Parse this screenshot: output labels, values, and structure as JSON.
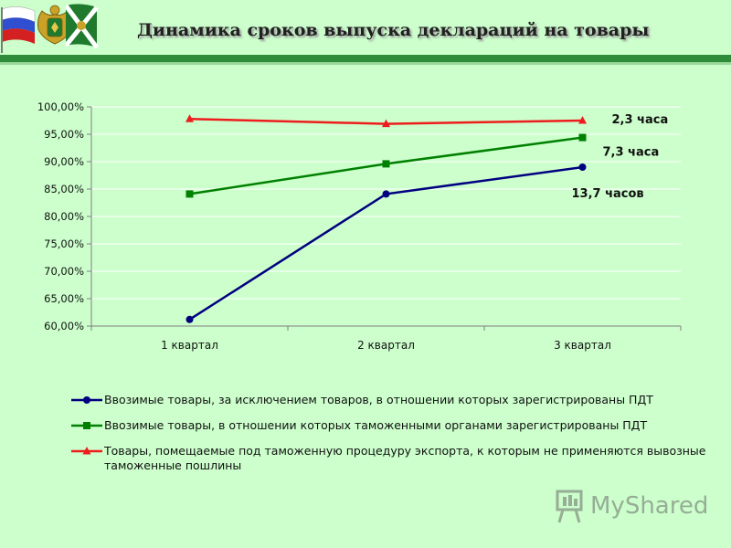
{
  "header": {
    "title": "Динамика сроков выпуска деклараций на товары"
  },
  "colors": {
    "background": "#ccffcc",
    "header_rule": "#2e8b3a",
    "series_blue": "#000080",
    "series_green": "#008000",
    "series_red": "#ee1c1c"
  },
  "chart_data": {
    "type": "line",
    "title": "",
    "xlabel": "",
    "ylabel": "",
    "ylim": [
      60,
      100
    ],
    "y_tick_step": 5,
    "yticks": [
      "60,00%",
      "65,00%",
      "70,00%",
      "75,00%",
      "80,00%",
      "85,00%",
      "90,00%",
      "95,00%",
      "100,00%"
    ],
    "categories": [
      "1 квартал",
      "2 квартал",
      "3 квартал"
    ],
    "grid": true,
    "legend_position": "bottom",
    "series": [
      {
        "name": "Ввозимые товары, за исключением товаров, в отношении которых зарегистрированы ПДТ",
        "values": [
          61.2,
          84.1,
          89.0
        ],
        "color": "#000080",
        "marker": "circle"
      },
      {
        "name": "Ввозимые товары, в отношении которых таможенными органами зарегистрированы ПДТ",
        "values": [
          84.1,
          89.6,
          94.4
        ],
        "color": "#008000",
        "marker": "square"
      },
      {
        "name": "Товары, помещаемые под таможенную процедуру экспорта, к которым не применяются вывозные таможенные пошлины",
        "values": [
          97.8,
          96.9,
          97.5
        ],
        "color": "#ee1c1c",
        "marker": "triangle"
      }
    ],
    "annotations": [
      {
        "text": "2,3 часа",
        "series": 2
      },
      {
        "text": "7,3 часа",
        "series": 1
      },
      {
        "text": "13,7 часов",
        "series": 0
      }
    ]
  },
  "legend": {
    "items": [
      {
        "label": "Ввозимые товары, за исключением товаров, в отношении которых зарегистрированы ПДТ"
      },
      {
        "label": "Ввозимые товары, в отношении которых таможенными органами зарегистрированы ПДТ"
      },
      {
        "label": "Товары, помещаемые под таможенную процедуру экспорта, к которым не применяются вывозные таможенные пошлины"
      }
    ]
  },
  "watermark": {
    "text": "MyShared",
    "icon": "presentation-board-icon"
  }
}
